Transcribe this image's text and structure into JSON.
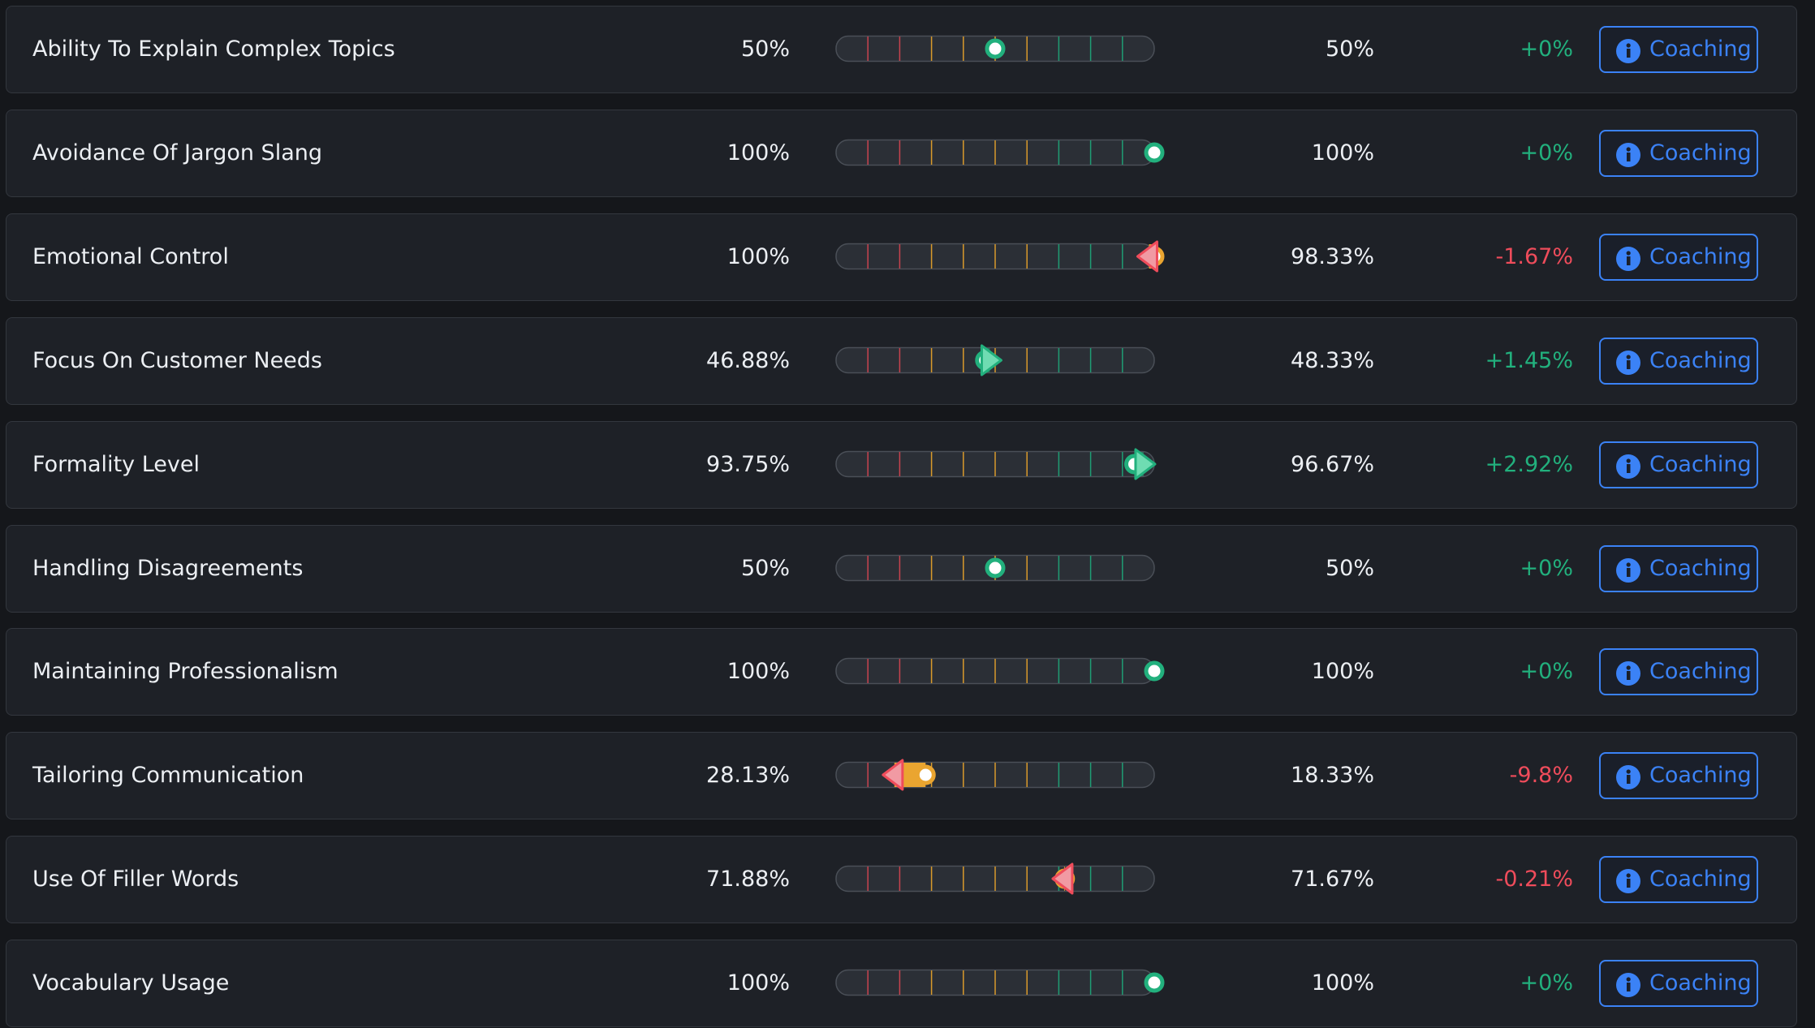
{
  "rows": [
    {
      "label": "Ability To Explain Complex Topics",
      "before": 50,
      "before_label": "50%",
      "after": 50,
      "after_label": "50%",
      "change": 0,
      "change_label": "+0%",
      "button": "Coaching"
    },
    {
      "label": "Avoidance Of Jargon Slang",
      "before": 100,
      "before_label": "100%",
      "after": 100,
      "after_label": "100%",
      "change": 0,
      "change_label": "+0%",
      "button": "Coaching"
    },
    {
      "label": "Emotional Control",
      "before": 100,
      "before_label": "100%",
      "after": 98.33,
      "after_label": "98.33%",
      "change": -1.67,
      "change_label": "-1.67%",
      "button": "Coaching"
    },
    {
      "label": "Focus On Customer Needs",
      "before": 46.88,
      "before_label": "46.88%",
      "after": 48.33,
      "after_label": "48.33%",
      "change": 1.45,
      "change_label": "+1.45%",
      "button": "Coaching"
    },
    {
      "label": "Formality Level",
      "before": 93.75,
      "before_label": "93.75%",
      "after": 96.67,
      "after_label": "96.67%",
      "change": 2.92,
      "change_label": "+2.92%",
      "button": "Coaching"
    },
    {
      "label": "Handling Disagreements",
      "before": 50,
      "before_label": "50%",
      "after": 50,
      "after_label": "50%",
      "change": 0,
      "change_label": "+0%",
      "button": "Coaching"
    },
    {
      "label": "Maintaining Professionalism",
      "before": 100,
      "before_label": "100%",
      "after": 100,
      "after_label": "100%",
      "change": 0,
      "change_label": "+0%",
      "button": "Coaching"
    },
    {
      "label": "Tailoring Communication",
      "before": 28.13,
      "before_label": "28.13%",
      "after": 18.33,
      "after_label": "18.33%",
      "change": -9.8,
      "change_label": "-9.8%",
      "button": "Coaching"
    },
    {
      "label": "Use Of Filler Words",
      "before": 71.88,
      "before_label": "71.88%",
      "after": 71.67,
      "after_label": "71.67%",
      "change": -0.21,
      "change_label": "-0.21%",
      "button": "Coaching"
    },
    {
      "label": "Vocabulary Usage",
      "before": 100,
      "before_label": "100%",
      "after": 100,
      "after_label": "100%",
      "change": 0,
      "change_label": "+0%",
      "button": "Coaching"
    }
  ]
}
